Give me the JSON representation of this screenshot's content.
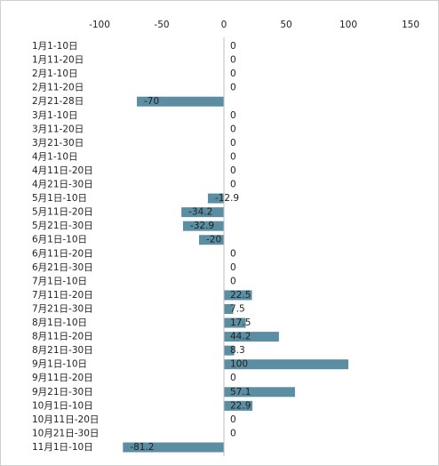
{
  "chart_data": {
    "type": "bar",
    "orientation": "horizontal",
    "categories": [
      "1月1-10日",
      "1月11-20日",
      "2月1-10日",
      "2月11-20日",
      "2月21-28日",
      "3月1-10日",
      "3月11-20日",
      "3月21-30日",
      "4月1-10日",
      "4月11日-20日",
      "4月21日-30日",
      "5月1日-10日",
      "5月11日-20日",
      "5月21日-30日",
      "6月1日-10日",
      "6月11日-20日",
      "6月21日-30日",
      "7月1日-10日",
      "7月11日-20日",
      "7月21日-30日",
      "8月1日-10日",
      "8月11日-20日",
      "8月21日-30日",
      "9月1日-10日",
      "9月11日-20日",
      "9月21日-30日",
      "10月1日-10日",
      "10月11日-20日",
      "10月21日-30日",
      "11月1日-10日"
    ],
    "values": [
      0,
      0,
      0,
      0,
      -70,
      0,
      0,
      0,
      0,
      0,
      0,
      -12.9,
      -34.2,
      -32.9,
      -20,
      0,
      0,
      0,
      22.5,
      7.5,
      17.5,
      44.2,
      8.3,
      100,
      0,
      57.1,
      22.9,
      0,
      0,
      -81.2
    ],
    "color": "#5b8ea3",
    "xlim": [
      -100,
      150
    ],
    "xticks": [
      -100,
      -50,
      0,
      50,
      100,
      150
    ]
  }
}
